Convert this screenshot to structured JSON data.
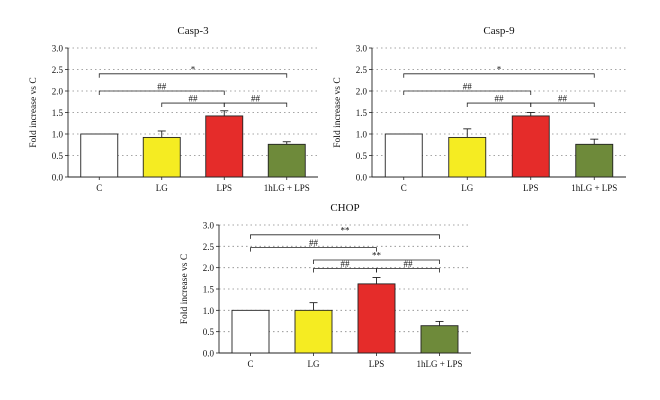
{
  "chart_data": [
    {
      "type": "bar",
      "title": "Casp-3",
      "ylabel": "Fold increase vs C",
      "categories": [
        "C",
        "LG",
        "LPS",
        "1hLG + LPS"
      ],
      "values": [
        1.0,
        0.92,
        1.42,
        0.76
      ],
      "errors": [
        0.0,
        0.15,
        0.12,
        0.06
      ],
      "colors": [
        "#ffffff",
        "#f5ec22",
        "#e52c2a",
        "#6e8a3a"
      ],
      "ylim": [
        0,
        3.0
      ],
      "yticks": [
        "0.0",
        "0.5",
        "1.0",
        "1.5",
        "2.0",
        "2.5",
        "3.0"
      ],
      "grid": "dotted horizontal",
      "brackets": [
        {
          "from": 0,
          "to": 3,
          "y": 2.4,
          "label": "*"
        },
        {
          "from": 0,
          "to": 2,
          "y": 2.0,
          "label": "##"
        },
        {
          "from": 1,
          "to": 2,
          "y": 1.72,
          "label": "##"
        },
        {
          "from": 2,
          "to": 3,
          "y": 1.72,
          "label": "##"
        }
      ]
    },
    {
      "type": "bar",
      "title": "Casp-9",
      "ylabel": "Fold increase vs C",
      "categories": [
        "C",
        "LG",
        "LPS",
        "1hLG + LPS"
      ],
      "values": [
        1.0,
        0.92,
        1.42,
        0.76
      ],
      "errors": [
        0.0,
        0.2,
        0.08,
        0.12
      ],
      "colors": [
        "#ffffff",
        "#f5ec22",
        "#e52c2a",
        "#6e8a3a"
      ],
      "ylim": [
        0,
        3.0
      ],
      "yticks": [
        "0.0",
        "0.5",
        "1.0",
        "1.5",
        "2.0",
        "2.5",
        "3.0"
      ],
      "grid": "dotted horizontal",
      "brackets": [
        {
          "from": 0,
          "to": 3,
          "y": 2.4,
          "label": "*"
        },
        {
          "from": 0,
          "to": 2,
          "y": 2.0,
          "label": "##"
        },
        {
          "from": 1,
          "to": 2,
          "y": 1.72,
          "label": "##"
        },
        {
          "from": 2,
          "to": 3,
          "y": 1.72,
          "label": "##"
        }
      ]
    },
    {
      "type": "bar",
      "title": "CHOP",
      "ylabel": "Fold increase vs C",
      "categories": [
        "C",
        "LG",
        "LPS",
        "1hLG + LPS"
      ],
      "values": [
        1.0,
        1.0,
        1.62,
        0.64
      ],
      "errors": [
        0.0,
        0.18,
        0.15,
        0.1
      ],
      "colors": [
        "#ffffff",
        "#f5ec22",
        "#e52c2a",
        "#6e8a3a"
      ],
      "ylim": [
        0,
        3.0
      ],
      "yticks": [
        "0.0",
        "0.5",
        "1.0",
        "1.5",
        "2.0",
        "2.5",
        "3.0"
      ],
      "grid": "dotted horizontal",
      "brackets": [
        {
          "from": 0,
          "to": 3,
          "y": 2.77,
          "label": "**"
        },
        {
          "from": 0,
          "to": 2,
          "y": 2.47,
          "label": "##"
        },
        {
          "from": 1,
          "to": 3,
          "y": 2.18,
          "label": "**"
        },
        {
          "from": 1,
          "to": 2,
          "y": 1.98,
          "label": "##"
        },
        {
          "from": 2,
          "to": 3,
          "y": 1.98,
          "label": "##"
        }
      ]
    }
  ]
}
